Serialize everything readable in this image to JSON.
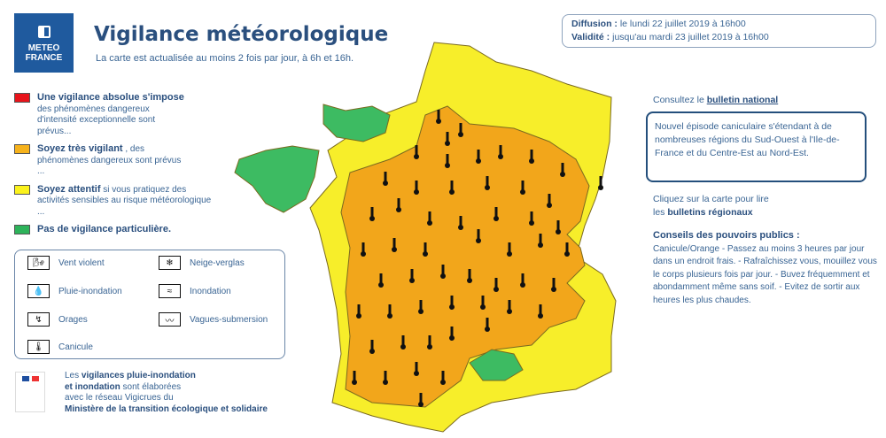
{
  "header": {
    "logo_line1": "METEO",
    "logo_line2": "FRANCE",
    "title": "Vigilance météorologique",
    "subtitle": "La carte est actualisée au moins 2 fois par jour, à 6h et 16h."
  },
  "legend": [
    {
      "color": "#e8141b",
      "title": "Une vigilance absolue s'impose",
      "text": "des phénomènes dangereux d'intensité exceptionnelle sont prévus..."
    },
    {
      "color": "#f6b21b",
      "title": "Soyez très vigilant",
      "text": ", des phénomènes dangereux sont prévus ..."
    },
    {
      "color": "#fbf21c",
      "title": "Soyez attentif",
      "text": "si vous pratiquez des activités sensibles au risque météorologique ..."
    },
    {
      "color": "#2db35a",
      "title": "Pas de vigilance particulière.",
      "text": ""
    }
  ],
  "phenomena": [
    {
      "icon": "wind-icon",
      "glyph": "🌬",
      "label": "Vent violent"
    },
    {
      "icon": "snow-ice-icon",
      "glyph": "❄",
      "label": "Neige-verglas"
    },
    {
      "icon": "rain-flood-icon",
      "glyph": "💧",
      "label": "Pluie-inondation"
    },
    {
      "icon": "flood-icon",
      "glyph": "≈",
      "label": "Inondation"
    },
    {
      "icon": "storm-icon",
      "glyph": "↯",
      "label": "Orages"
    },
    {
      "icon": "wave-icon",
      "glyph": "〰",
      "label": "Vagues-submersion"
    },
    {
      "icon": "thermometer-icon",
      "glyph": "🌡",
      "label": "Canicule"
    }
  ],
  "gov": {
    "pre": "Les ",
    "b1": "vigilances pluie-inondation",
    "b2": "et inondation",
    "mid": " sont élaborées",
    "line3": "avec le réseau Vigicrues du",
    "b3": "Ministère de la transition écologique et solidaire"
  },
  "dates": {
    "diffusion_label": "Diffusion :",
    "diffusion": "le lundi 22 juillet 2019 à 16h00",
    "validite_label": "Validité :",
    "validite": "jusqu'au mardi 23 juillet 2019 à 16h00"
  },
  "consult": {
    "text": "Consultez le ",
    "link": "bulletin national"
  },
  "episode": "Nouvel épisode caniculaire s'étendant à de nombreuses régions du Sud-Ouest à l'Ile-de-France et du Centre-Est au Nord-Est.",
  "click": {
    "line1": "Cliquez sur la carte pour lire",
    "pre": "les ",
    "link": "bulletins régionaux"
  },
  "conseils": {
    "title": "Conseils des pouvoirs publics :",
    "text": "Canicule/Orange - Passez au moins 3 heures par jour dans un endroit frais. - Rafraîchissez vous, mouillez vous le corps plusieurs fois par jour. - Buvez fréquemment et abondamment même sans soif. - Evitez de sortir aux heures les plus chaudes."
  },
  "map": {
    "colors": {
      "orange": "#f2a61b",
      "yellow": "#f7ee2a",
      "green": "#3dbb62",
      "border": "#7a6a20"
    },
    "alert_icon": "thermometer-icon"
  }
}
